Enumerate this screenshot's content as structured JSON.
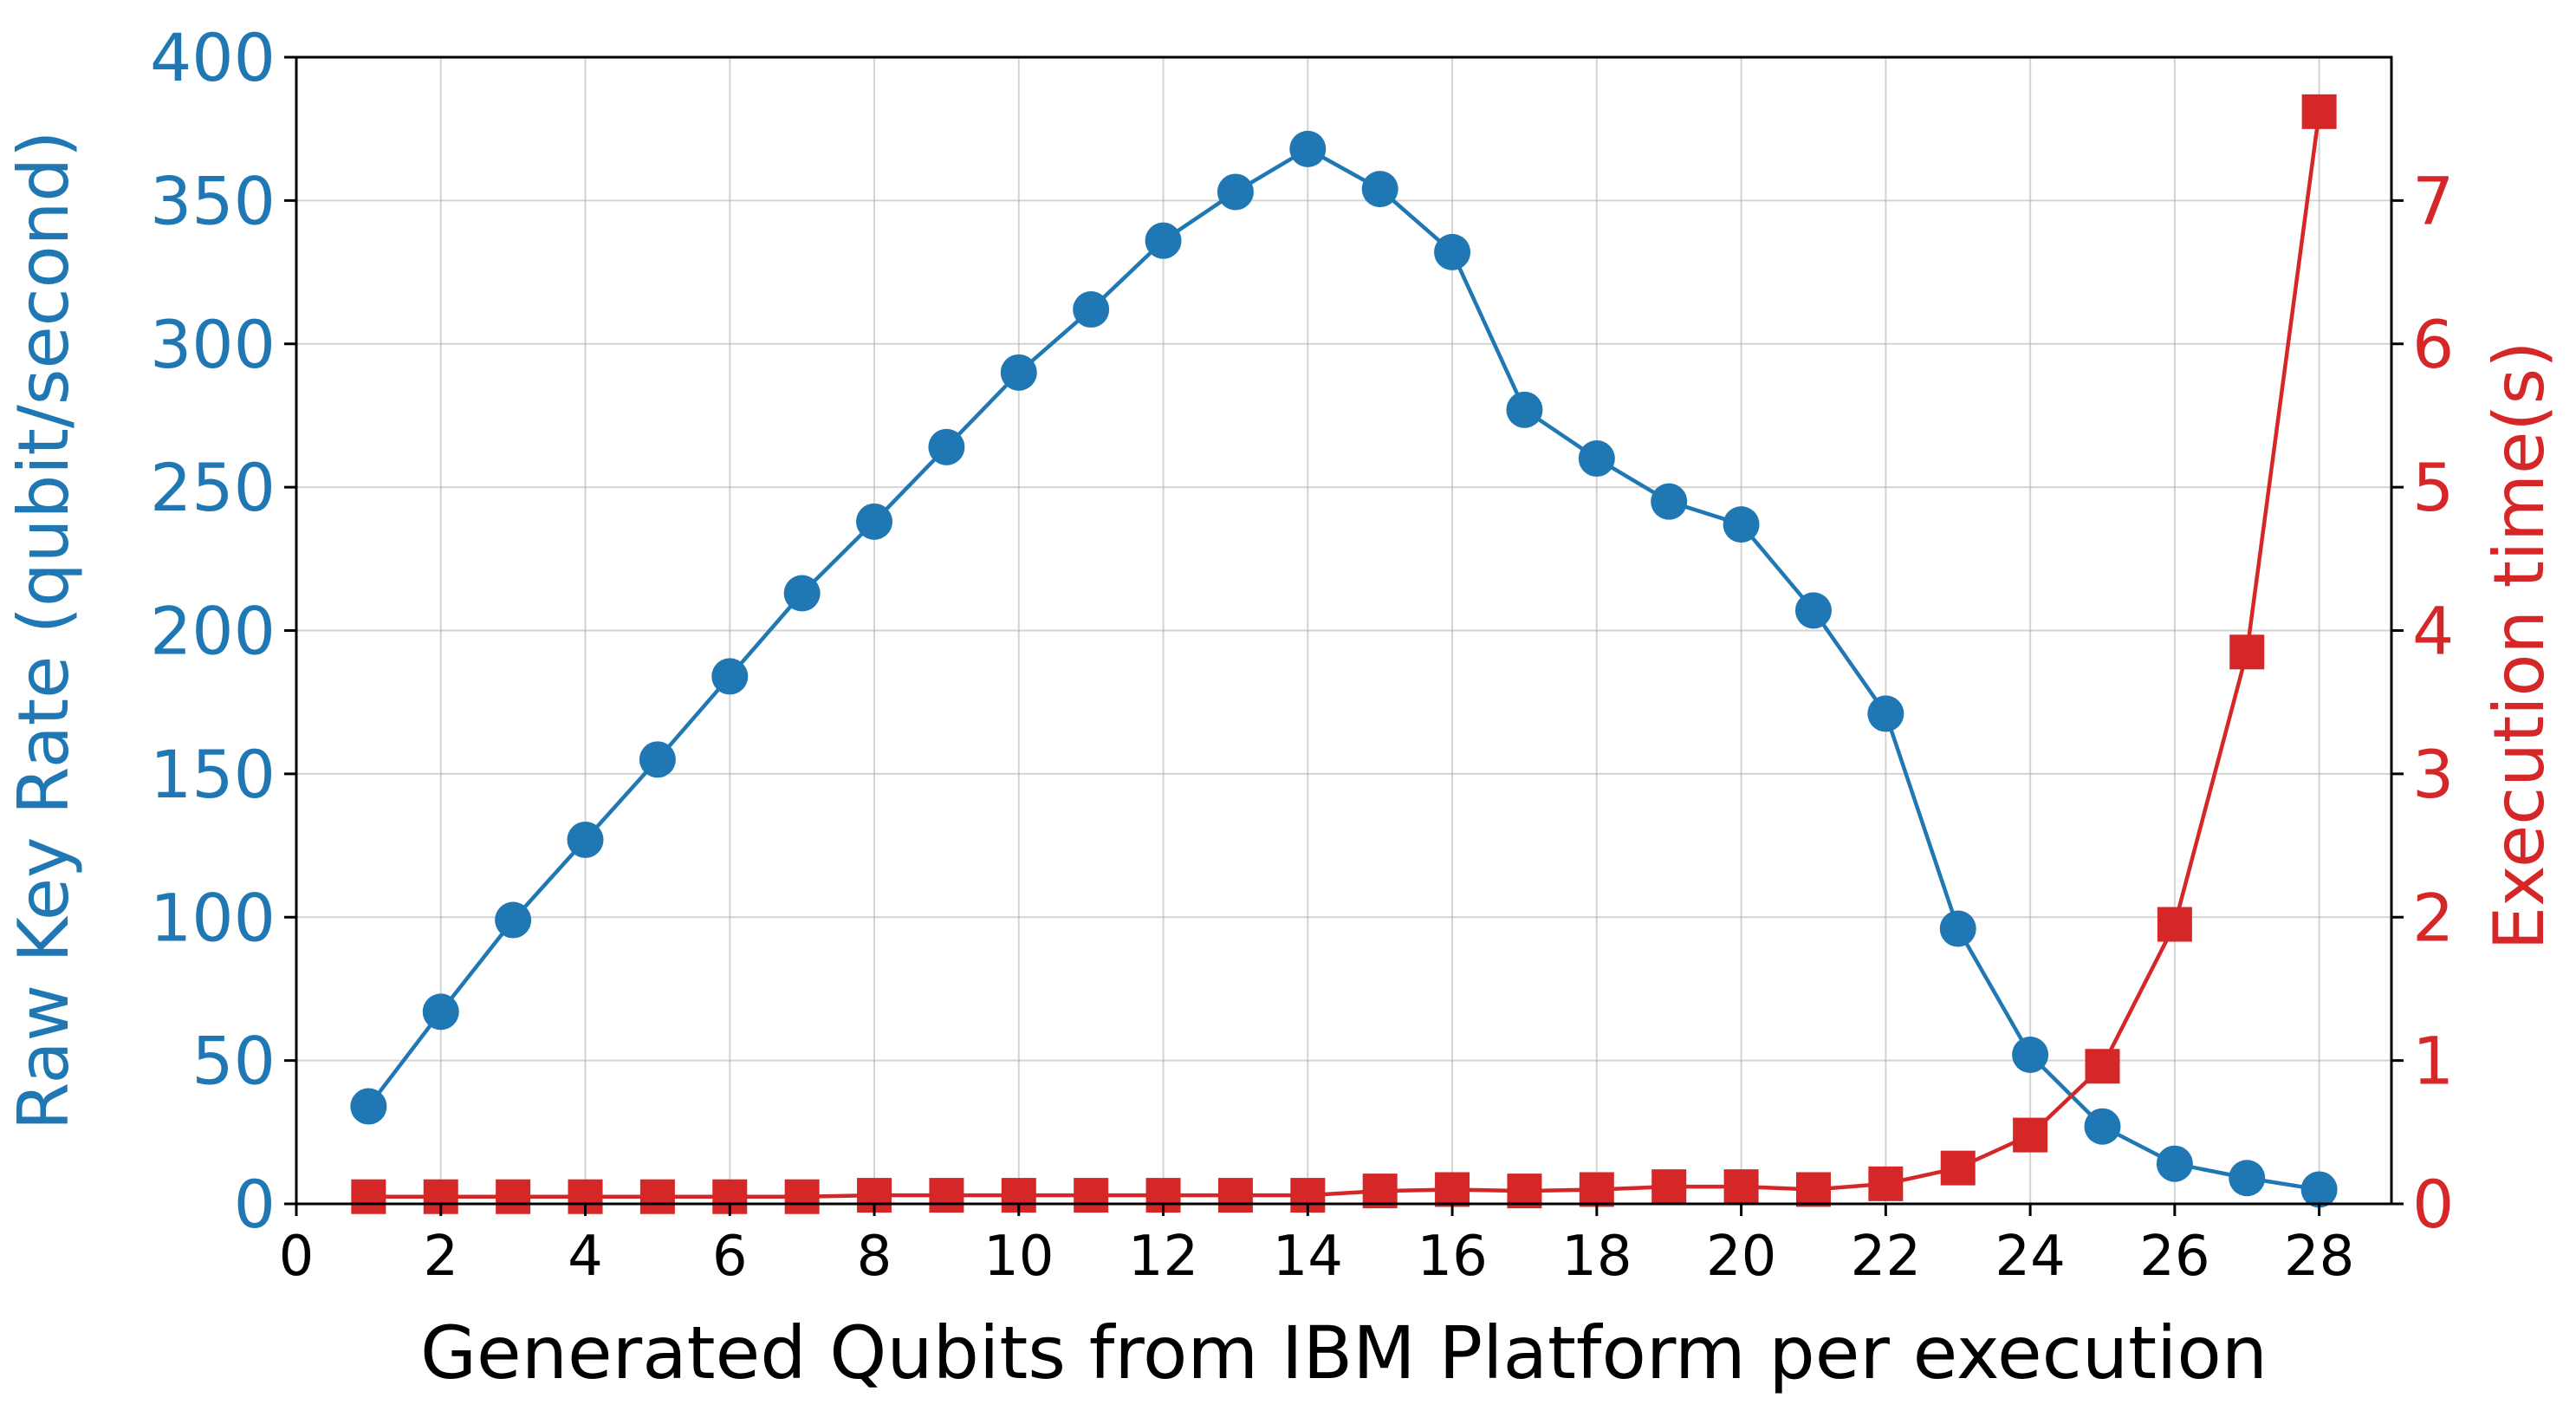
{
  "chart_data": {
    "type": "line",
    "xlabel": "Generated Qubits from IBM Platform per execution",
    "xlim": [
      0,
      29
    ],
    "xticks": [
      0,
      2,
      4,
      6,
      8,
      10,
      12,
      14,
      16,
      18,
      20,
      22,
      24,
      26,
      28
    ],
    "grid": true,
    "colors": {
      "left": "#1f77b4",
      "right": "#d62728"
    },
    "left_axis": {
      "ylabel": "Raw Key Rate (qubit/second)",
      "ylim": [
        0,
        400
      ],
      "yticks": [
        0,
        50,
        100,
        150,
        200,
        250,
        300,
        350,
        400
      ]
    },
    "right_axis": {
      "ylabel": "Execution time(s)",
      "ylim": [
        0,
        8
      ],
      "yticks": [
        0,
        1,
        2,
        3,
        4,
        5,
        6,
        7
      ]
    },
    "x": [
      1,
      2,
      3,
      4,
      5,
      6,
      7,
      8,
      9,
      10,
      11,
      12,
      13,
      14,
      15,
      16,
      17,
      18,
      19,
      20,
      21,
      22,
      23,
      24,
      25,
      26,
      27,
      28
    ],
    "series": [
      {
        "axis": "left",
        "marker": "circle",
        "values": [
          34,
          67,
          99,
          127,
          155,
          184,
          213,
          238,
          264,
          290,
          312,
          336,
          353,
          368,
          354,
          332,
          277,
          260,
          245,
          237,
          207,
          171,
          96,
          52,
          27,
          14,
          9,
          5
        ]
      },
      {
        "axis": "right",
        "marker": "square",
        "values": [
          0.05,
          0.05,
          0.05,
          0.05,
          0.05,
          0.05,
          0.05,
          0.06,
          0.06,
          0.06,
          0.06,
          0.06,
          0.06,
          0.06,
          0.09,
          0.1,
          0.09,
          0.1,
          0.12,
          0.12,
          0.1,
          0.14,
          0.25,
          0.48,
          0.96,
          1.95,
          3.85,
          7.62
        ]
      }
    ]
  }
}
